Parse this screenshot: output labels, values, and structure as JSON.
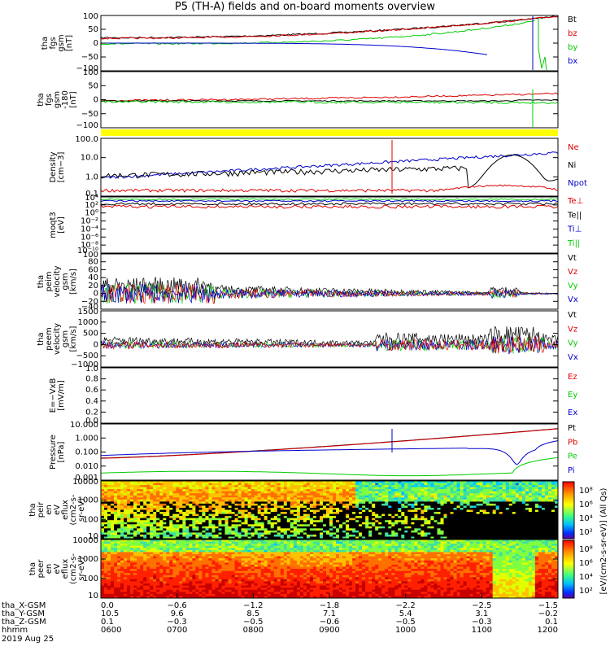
{
  "title": "P5 (TH-A) fields and on-board moments overview",
  "colors": {
    "black": "#000000",
    "red": "#dd0000",
    "green": "#00cc00",
    "blue": "#0000cc",
    "yellow": "#ffff00"
  },
  "panels": [
    {
      "id": "fgs-gsm",
      "ylabel": [
        "tha",
        "fgs",
        "gsm",
        "[nT]"
      ],
      "yticks": [
        "100",
        "50",
        "0",
        "−50",
        "−100"
      ],
      "legend": [
        {
          "t": "Bt",
          "c": "black"
        },
        {
          "t": "bz",
          "c": "red"
        },
        {
          "t": "by",
          "c": "green"
        },
        {
          "t": "bx",
          "c": "blue"
        }
      ]
    },
    {
      "id": "fgs-gse",
      "ylabel": [
        "tha",
        "fgs",
        "gsm",
        "-180",
        "[nT]"
      ],
      "yticks": [
        "100",
        "50",
        "0",
        "−50",
        "−100"
      ],
      "legend": []
    },
    {
      "id": "density",
      "ylabel": [
        "Density",
        "[cm−3]"
      ],
      "yticks": [
        "100.0",
        "10.0",
        "1.0",
        "0.1"
      ],
      "legend": [
        {
          "t": "Ne",
          "c": "red"
        },
        {
          "t": "Ni",
          "c": "black"
        },
        {
          "t": "Npot",
          "c": "blue"
        }
      ]
    },
    {
      "id": "temp",
      "ylabel": [
        "moqt3",
        "[eV]"
      ],
      "yticks": [
        "10⁴",
        "10²",
        "10⁰",
        "10⁻²",
        "10⁻⁴",
        "10⁻⁶",
        "10⁻⁸",
        "10⁻¹⁰"
      ],
      "legend": [
        {
          "t": "Te⊥",
          "c": "red"
        },
        {
          "t": "Te||",
          "c": "black"
        },
        {
          "t": "Ti⊥",
          "c": "blue"
        },
        {
          "t": "Ti||",
          "c": "green"
        }
      ]
    },
    {
      "id": "peim-vel",
      "ylabel": [
        "tha",
        "peim",
        "velocity",
        "gsm",
        "[km/s]"
      ],
      "yticks": [
        "100",
        "80",
        "60",
        "40",
        "20",
        "0",
        "−20",
        "−40"
      ],
      "legend": [
        {
          "t": "Vt",
          "c": "black"
        },
        {
          "t": "Vz",
          "c": "red"
        },
        {
          "t": "Vy",
          "c": "green"
        },
        {
          "t": "Vx",
          "c": "blue"
        }
      ]
    },
    {
      "id": "peem-vel",
      "ylabel": [
        "tha",
        "peem",
        "velocity",
        "gsm",
        "[km/s]"
      ],
      "yticks": [
        "1500",
        "1000",
        "500",
        "0",
        "−500",
        "−1000"
      ],
      "legend": [
        {
          "t": "Vt",
          "c": "black"
        },
        {
          "t": "Vz",
          "c": "red"
        },
        {
          "t": "Vy",
          "c": "green"
        },
        {
          "t": "Vx",
          "c": "blue"
        }
      ]
    },
    {
      "id": "efield",
      "ylabel": [
        "E=−VxB",
        "[mV/m]"
      ],
      "yticks": [
        "1.0",
        "0.8",
        "0.6",
        "0.4",
        "0.2",
        "0.0"
      ],
      "legend": [
        {
          "t": "Ez",
          "c": "red"
        },
        {
          "t": "Ey",
          "c": "green"
        },
        {
          "t": "Ex",
          "c": "blue"
        }
      ]
    },
    {
      "id": "pressure",
      "ylabel": [
        "Pressure",
        "[nPa]"
      ],
      "yticks": [
        "10.000",
        "1.000",
        "0.100",
        "0.010",
        "0.001"
      ],
      "legend": [
        {
          "t": "Pt",
          "c": "black"
        },
        {
          "t": "Pb",
          "c": "red"
        },
        {
          "t": "Pe",
          "c": "green"
        },
        {
          "t": "Pi",
          "c": "blue"
        }
      ]
    },
    {
      "id": "peir-spec",
      "ylabel": [
        "tha",
        "peir",
        "en",
        "eV",
        "eflux",
        "(cm2-s-",
        "sr-eV)"
      ],
      "yticks": [
        "10000",
        "1000",
        "100",
        "10"
      ],
      "legend": []
    },
    {
      "id": "peer-spec",
      "ylabel": [
        "tha",
        "peer",
        "en",
        "eV",
        "eflux",
        "(cm2-s-",
        "sr-eV)"
      ],
      "yticks": [
        "10000",
        "1000",
        "100",
        "10"
      ],
      "legend": []
    }
  ],
  "colorbar": {
    "ticks": [
      "10⁸",
      "10⁶",
      "10⁴",
      "10²",
      "10⁸",
      "10⁶",
      "10⁴",
      "10²"
    ],
    "label": "[eV/(cm2-s-sr-eV)] (All Qs)"
  },
  "xaxis": {
    "rows": [
      {
        "label": "tha_X-GSM",
        "values": [
          "0.0",
          "−0.6",
          "−1.2",
          "−1.8",
          "−2.2",
          "−2.5",
          "−1.5"
        ]
      },
      {
        "label": "tha_Y-GSM",
        "values": [
          "10.5",
          "9.6",
          "8.5",
          "7.1",
          "5.4",
          "3.1",
          "−0.2"
        ]
      },
      {
        "label": "tha_Z-GSM",
        "values": [
          "0.1",
          "−0.3",
          "−0.5",
          "−0.6",
          "−0.5",
          "−0.3",
          "0.1"
        ]
      },
      {
        "label": "hhmm",
        "values": [
          "0600",
          "0700",
          "0800",
          "0900",
          "1000",
          "1100",
          "1200"
        ]
      }
    ],
    "date": "2019 Aug 25"
  },
  "chart_data": [
    {
      "type": "line",
      "title": "P5 (TH-A) fields and on-board moments overview",
      "ylabel": "tha fgs gsm [nT]",
      "ylim": [
        -100,
        100
      ],
      "x": [
        "0600",
        "0700",
        "0800",
        "0900",
        "1000",
        "1100",
        "1200"
      ],
      "series": [
        {
          "name": "Bt",
          "values": [
            20,
            25,
            33,
            45,
            65,
            95,
            100
          ]
        },
        {
          "name": "bz",
          "values": [
            18,
            24,
            32,
            44,
            64,
            94,
            100
          ]
        },
        {
          "name": "by",
          "values": [
            0,
            3,
            8,
            14,
            25,
            55,
            100
          ]
        },
        {
          "name": "bx",
          "values": [
            0,
            -2,
            -5,
            -10,
            -22,
            -55,
            -100
          ]
        }
      ]
    },
    {
      "type": "line",
      "ylabel": "tha fgs gsm-180 [nT]",
      "ylim": [
        -120,
        120
      ],
      "x": [
        "0600",
        "0700",
        "0800",
        "0900",
        "1000",
        "1100",
        "1200"
      ],
      "series": [
        {
          "values": [
            2,
            5,
            8,
            12,
            16,
            22,
            30
          ]
        },
        {
          "values": [
            0,
            0,
            0,
            0,
            0,
            2,
            5
          ]
        },
        {
          "values": [
            0,
            -2,
            -2,
            -3,
            -3,
            -4,
            -6
          ]
        }
      ]
    },
    {
      "type": "line",
      "ylabel": "Density [cm-3]",
      "ylim": [
        0.05,
        200
      ],
      "x": [
        "0600",
        "0700",
        "0800",
        "0900",
        "1000",
        "1100",
        "1200"
      ],
      "series": [
        {
          "name": "Ne",
          "values": [
            0.08,
            0.1,
            0.07,
            0.06,
            0.05,
            0.1,
            0.1
          ]
        },
        {
          "name": "Ni",
          "values": [
            1.2,
            0.6,
            0.6,
            0.8,
            1.5,
            15,
            0.3
          ]
        },
        {
          "name": "Npot",
          "values": [
            1.0,
            0.6,
            0.8,
            2,
            10,
            20,
            30
          ]
        }
      ]
    },
    {
      "type": "line",
      "ylabel": "Pressure [nPa]",
      "ylim": [
        0.001,
        10
      ],
      "x": [
        "0600",
        "0700",
        "0800",
        "0900",
        "1000",
        "1100",
        "1200"
      ],
      "series": [
        {
          "name": "Pt",
          "values": [
            0.05,
            0.08,
            0.15,
            0.3,
            0.8,
            3,
            10
          ]
        },
        {
          "name": "Pb",
          "values": [
            0.05,
            0.08,
            0.15,
            0.3,
            0.8,
            3,
            10
          ]
        },
        {
          "name": "Pe",
          "values": [
            0.003,
            0.002,
            0.003,
            0.003,
            0.005,
            0.008,
            0.05
          ]
        },
        {
          "name": "Pi",
          "values": [
            0.08,
            0.05,
            0.08,
            0.12,
            0.3,
            0.3,
            1
          ]
        }
      ]
    },
    {
      "type": "heatmap",
      "ylabel": "tha peir en eV eflux",
      "ylim": [
        5,
        30000
      ],
      "x": [
        "0600",
        "0700",
        "0800",
        "0900",
        "1000",
        "1100",
        "1200"
      ]
    },
    {
      "type": "heatmap",
      "ylabel": "tha peer en eV eflux",
      "ylim": [
        5,
        30000
      ],
      "x": [
        "0600",
        "0700",
        "0800",
        "0900",
        "1000",
        "1100",
        "1200"
      ]
    }
  ]
}
